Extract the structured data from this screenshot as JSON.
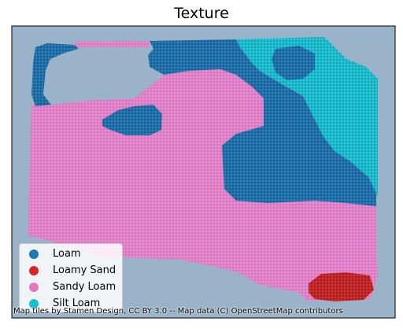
{
  "title": "Texture",
  "attribution": "Map tiles by Stamen Design, CC BY 3.0 -- Map data (C) OpenStreetMap contributors",
  "background_color": "#9ab3c8",
  "legend": [
    {
      "label": "Loam",
      "color": "#1f77b4"
    },
    {
      "label": "Loamy Sand",
      "color": "#d62728"
    },
    {
      "label": "Sandy Loam",
      "color": "#e377c2"
    },
    {
      "label": "Silt Loam",
      "color": "#17becf"
    }
  ]
}
